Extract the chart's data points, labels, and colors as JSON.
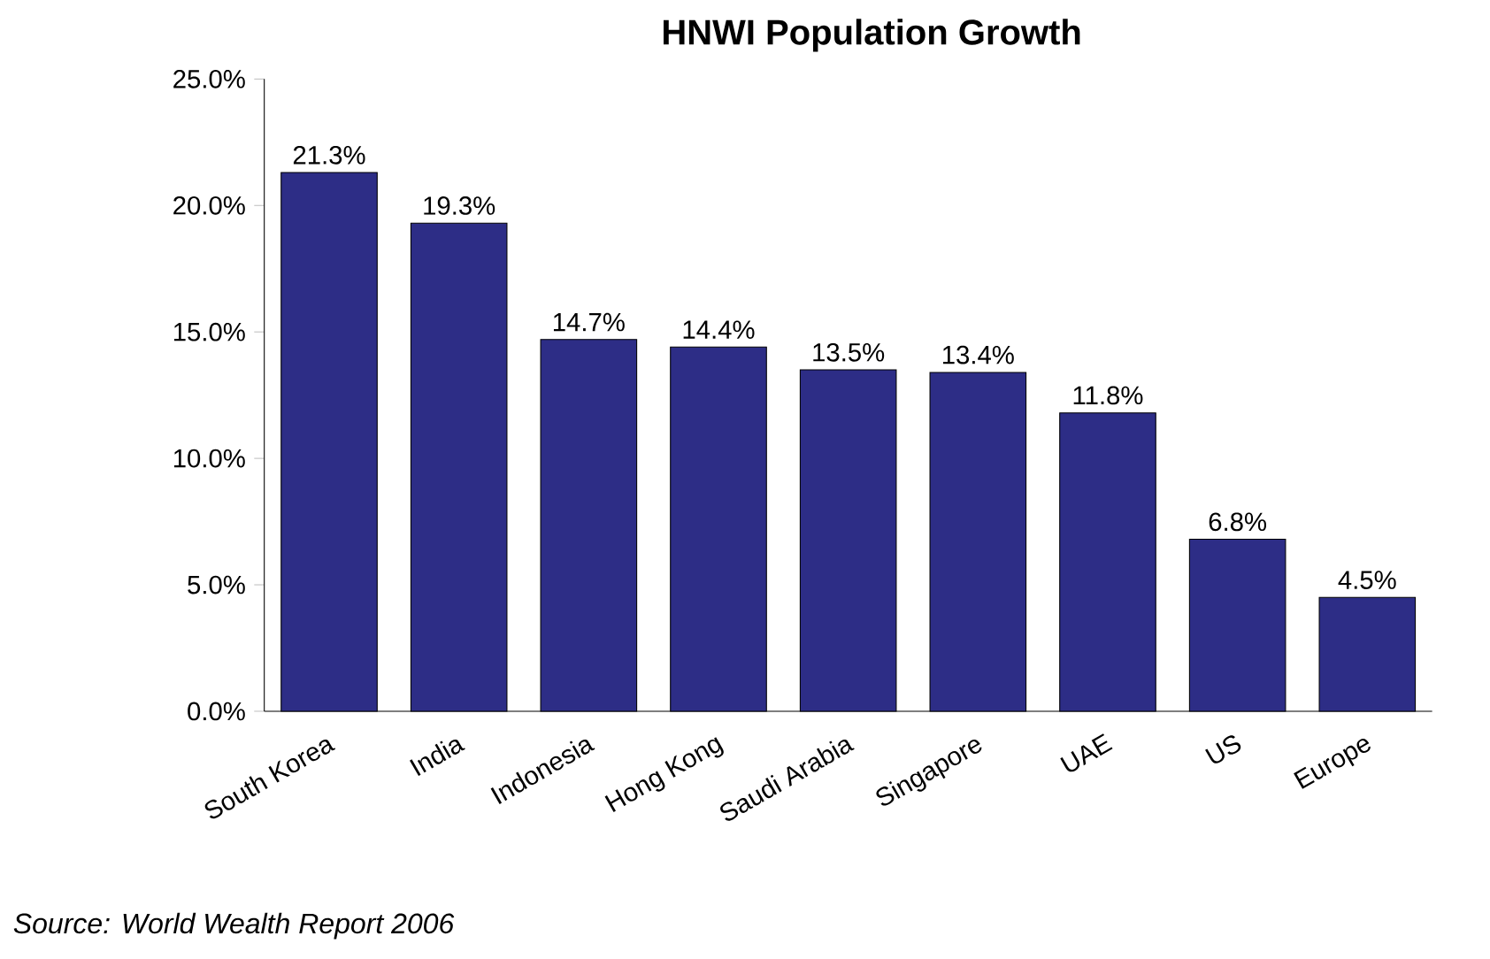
{
  "chart_data": {
    "type": "bar",
    "title": "HNWI Population Growth",
    "categories": [
      "South Korea",
      "India",
      "Indonesia",
      "Hong Kong",
      "Saudi Arabia",
      "Singapore",
      "UAE",
      "US",
      "Europe"
    ],
    "values": [
      21.3,
      19.3,
      14.7,
      14.4,
      13.5,
      13.4,
      11.8,
      6.8,
      4.5
    ],
    "value_labels": [
      "21.3%",
      "19.3%",
      "14.7%",
      "14.4%",
      "13.5%",
      "13.4%",
      "11.8%",
      "6.8%",
      "4.5%"
    ],
    "color": "#2d2d86",
    "ylim": [
      0,
      25
    ],
    "yticks": [
      {
        "value": 0,
        "label": "0.0%"
      },
      {
        "value": 5,
        "label": "5.0%"
      },
      {
        "value": 10,
        "label": "10.0%"
      },
      {
        "value": 15,
        "label": "15.0%"
      },
      {
        "value": 20,
        "label": "20.0%"
      },
      {
        "value": 25,
        "label": "25.0%"
      }
    ],
    "grid": false,
    "annotations": [
      "Source: World Wealth Report 2006"
    ]
  }
}
